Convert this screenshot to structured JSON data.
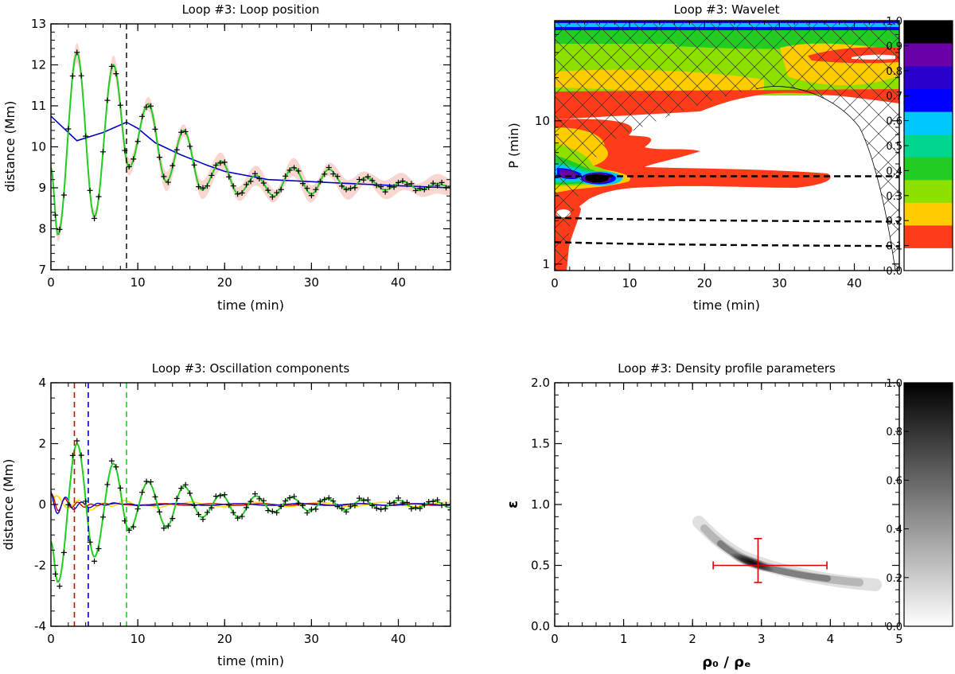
{
  "chart_data": [
    {
      "id": "position",
      "type": "line",
      "title": "Loop #3: Loop position",
      "xlabel": "time (min)",
      "ylabel": "distance (Mm)",
      "xlim": [
        0,
        46
      ],
      "ylim": [
        7,
        13
      ],
      "xticks": [
        0,
        10,
        20,
        30,
        40
      ],
      "yticks": [
        7,
        8,
        9,
        10,
        11,
        12,
        13
      ],
      "vlines": [
        {
          "x": 8.7,
          "color": "#000000"
        }
      ],
      "observations_peaks": [
        [
          0.8,
          7.85
        ],
        [
          3.0,
          12.3
        ],
        [
          5.0,
          8.3
        ],
        [
          7.2,
          12.0
        ],
        [
          9.0,
          9.5
        ],
        [
          11.2,
          11.05
        ],
        [
          13.3,
          9.15
        ],
        [
          15.3,
          10.4
        ],
        [
          17.4,
          8.95
        ],
        [
          19.6,
          9.65
        ],
        [
          21.6,
          8.85
        ],
        [
          23.6,
          9.3
        ],
        [
          25.7,
          8.8
        ],
        [
          27.9,
          9.5
        ],
        [
          30.0,
          8.85
        ],
        [
          32.0,
          9.45
        ],
        [
          34.2,
          8.95
        ],
        [
          36.3,
          9.25
        ],
        [
          38.5,
          8.95
        ],
        [
          40.5,
          9.15
        ],
        [
          42.5,
          8.95
        ],
        [
          44.5,
          9.1
        ]
      ],
      "series": [
        {
          "name": "trend",
          "color": "#0000cc",
          "x": [
            0,
            1,
            3,
            6,
            8.7,
            10,
            12,
            15,
            18,
            20,
            25,
            30,
            35,
            40,
            46
          ],
          "y": [
            10.75,
            10.55,
            10.15,
            10.35,
            10.6,
            10.45,
            10.1,
            9.8,
            9.55,
            9.4,
            9.2,
            9.15,
            9.1,
            9.05,
            9.0
          ]
        },
        {
          "name": "fit",
          "color": "#22cc22"
        },
        {
          "name": "uncertainty band",
          "color": "#f9d6d0"
        }
      ]
    },
    {
      "id": "wavelet",
      "type": "heatmap",
      "title": "Loop #3: Wavelet",
      "xlabel": "time (min)",
      "ylabel": "P (min)",
      "xlim": [
        0,
        46
      ],
      "ylim": [
        0.9,
        50
      ],
      "yscale": "log",
      "xticks": [
        0,
        10,
        20,
        30,
        40
      ],
      "yticks": [
        1,
        10
      ],
      "colorbar": {
        "ticks": [
          "0.0",
          "0.1",
          "0.2",
          "0.3",
          "0.4",
          "0.5",
          "0.6",
          "0.7",
          "0.8",
          "0.9",
          "1.0"
        ],
        "colors": [
          "#ffffff",
          "#ff3b1a",
          "#ffcc00",
          "#8ee000",
          "#22cc22",
          "#00d68f",
          "#00c8ff",
          "#0000ff",
          "#2a00cc",
          "#6a00a8"
        ],
        "top_color": "#000000"
      },
      "period_lines_min": [
        4.1,
        2.0,
        1.35
      ],
      "features": [
        {
          "name": "main power peak",
          "t": 5,
          "period_min": 4.1,
          "power": 1.0
        }
      ]
    },
    {
      "id": "components",
      "type": "line",
      "title": "Loop #3: Oscillation components",
      "xlabel": "time (min)",
      "ylabel": "distance (Mm)",
      "xlim": [
        0,
        46
      ],
      "ylim": [
        -4,
        4
      ],
      "xticks": [
        0,
        10,
        20,
        30,
        40
      ],
      "yticks": [
        -4,
        -2,
        0,
        2,
        4
      ],
      "vlines": [
        {
          "x": 2.7,
          "color": "#dd0000"
        },
        {
          "x": 4.3,
          "color": "#0000cc"
        },
        {
          "x": 8.7,
          "color": "#22cc22"
        }
      ],
      "observations_peaks": [
        [
          0.8,
          -2.75
        ],
        [
          3.0,
          2.15
        ],
        [
          5.0,
          -1.85
        ],
        [
          7.2,
          1.45
        ],
        [
          9.0,
          -0.9
        ],
        [
          11.2,
          0.8
        ],
        [
          13.3,
          -0.8
        ],
        [
          15.3,
          0.65
        ],
        [
          17.4,
          -0.45
        ],
        [
          19.6,
          0.35
        ],
        [
          21.6,
          -0.45
        ],
        [
          23.6,
          0.3
        ]
      ],
      "series": [
        {
          "name": "main component",
          "color": "#22cc22"
        },
        {
          "name": "component 2",
          "color": "#0000cc"
        },
        {
          "name": "component 3",
          "color": "#dd0000"
        },
        {
          "name": "component 4",
          "color": "#ffdd00"
        }
      ]
    },
    {
      "id": "density",
      "type": "heatmap",
      "title": "Loop #3: Density profile parameters",
      "xlabel": "ρ₀ / ρₑ",
      "ylabel": "ε",
      "xlim": [
        0,
        5
      ],
      "ylim": [
        0,
        2
      ],
      "xticks": [
        0,
        1,
        2,
        3,
        4,
        5
      ],
      "yticks": [
        "0.0",
        "0.5",
        "1.0",
        "1.5",
        "2.0"
      ],
      "colorbar": {
        "ticks": [
          "0.0",
          "0.2",
          "0.4",
          "0.6",
          "0.8",
          "1.0"
        ],
        "colormap": "white-to-black"
      },
      "estimate": {
        "x": 2.95,
        "y": 0.5,
        "x_err": [
          2.3,
          3.95
        ],
        "y_err": [
          0.36,
          0.72
        ],
        "color": "#dd0000"
      }
    }
  ]
}
